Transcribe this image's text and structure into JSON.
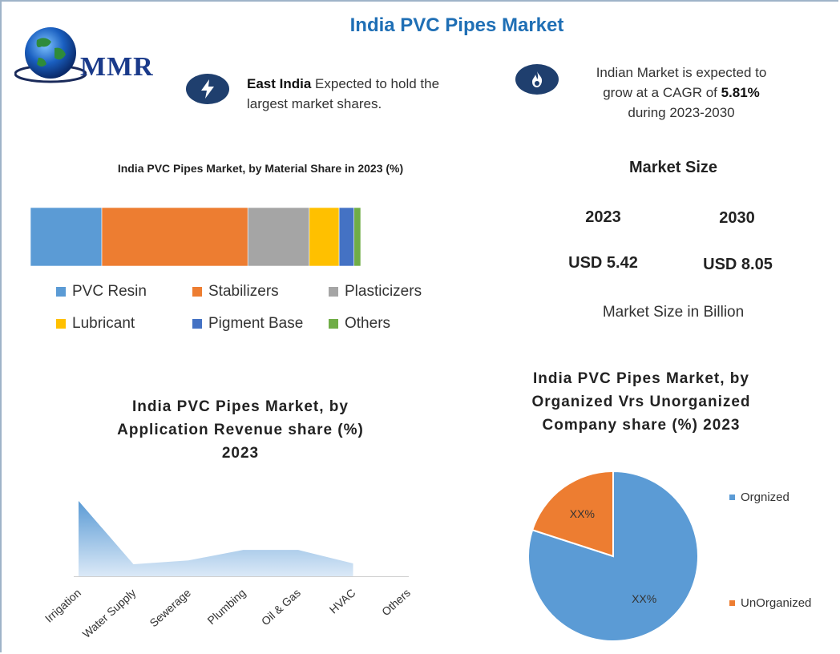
{
  "title": "India PVC Pipes Market",
  "logo": {
    "text": "MMR",
    "icon": "globe-icon"
  },
  "highlights": [
    {
      "icon": "lightning-icon",
      "bold": "East India",
      "text_line1": " Expected to hold the",
      "text_line2": "largest market shares."
    },
    {
      "icon": "flame-icon",
      "line1": "Indian Market is expected to",
      "line2_pre": "grow at a CAGR of ",
      "line2_bold": "5.81%",
      "line3": "during 2023-2030"
    }
  ],
  "colors": {
    "title": "#1f6fb5",
    "icon_bg": "#1f3f6e",
    "area_top": "#5b9bd5",
    "pie_organized": "#5b9bd5",
    "pie_unorganized": "#ed7d31"
  },
  "market_size": {
    "title": "Market Size",
    "years": [
      "2023",
      "2030"
    ],
    "values": [
      "USD 5.42",
      "USD 8.05"
    ],
    "note": "Market Size in Billion"
  },
  "chart_data": [
    {
      "type": "bar",
      "orientation": "horizontal-stacked",
      "title": "India PVC Pipes Market, by Material Share in 2023 (%)",
      "xlim": [
        0,
        100
      ],
      "series": [
        {
          "name": "PVC Resin",
          "value": 21.5,
          "color": "#5b9bd5"
        },
        {
          "name": "Stabilizers",
          "value": 44,
          "color": "#ed7d31"
        },
        {
          "name": "Plasticizers",
          "value": 18.5,
          "color": "#a5a5a5"
        },
        {
          "name": "Lubricant",
          "value": 9,
          "color": "#ffc000"
        },
        {
          "name": "Pigment Base",
          "value": 4.5,
          "color": "#4472c4"
        },
        {
          "name": "Others",
          "value": 2,
          "color": "#70ad47"
        }
      ],
      "legend": "bottom"
    },
    {
      "type": "area",
      "title_lines": [
        "India PVC Pipes Market, by",
        "Application Revenue share (%)",
        "2023"
      ],
      "categories": [
        "Irrigation",
        "Water Supply",
        "Sewerage",
        "Plumbing",
        "Oil & Gas",
        "HVAC",
        "Others"
      ],
      "values": [
        100,
        16,
        21,
        35,
        35,
        17,
        0
      ],
      "ylim": [
        0,
        100
      ],
      "grid": false
    },
    {
      "type": "pie",
      "title_lines": [
        "India PVC Pipes Market, by",
        "Organized Vrs Unorganized",
        "Company share (%) 2023"
      ],
      "slices": [
        {
          "name": "Orgnized",
          "value": 80,
          "label": "XX%",
          "color": "#5b9bd5"
        },
        {
          "name": "UnOrganized",
          "value": 20,
          "label": "XX%",
          "color": "#ed7d31"
        }
      ],
      "legend": "right"
    }
  ]
}
